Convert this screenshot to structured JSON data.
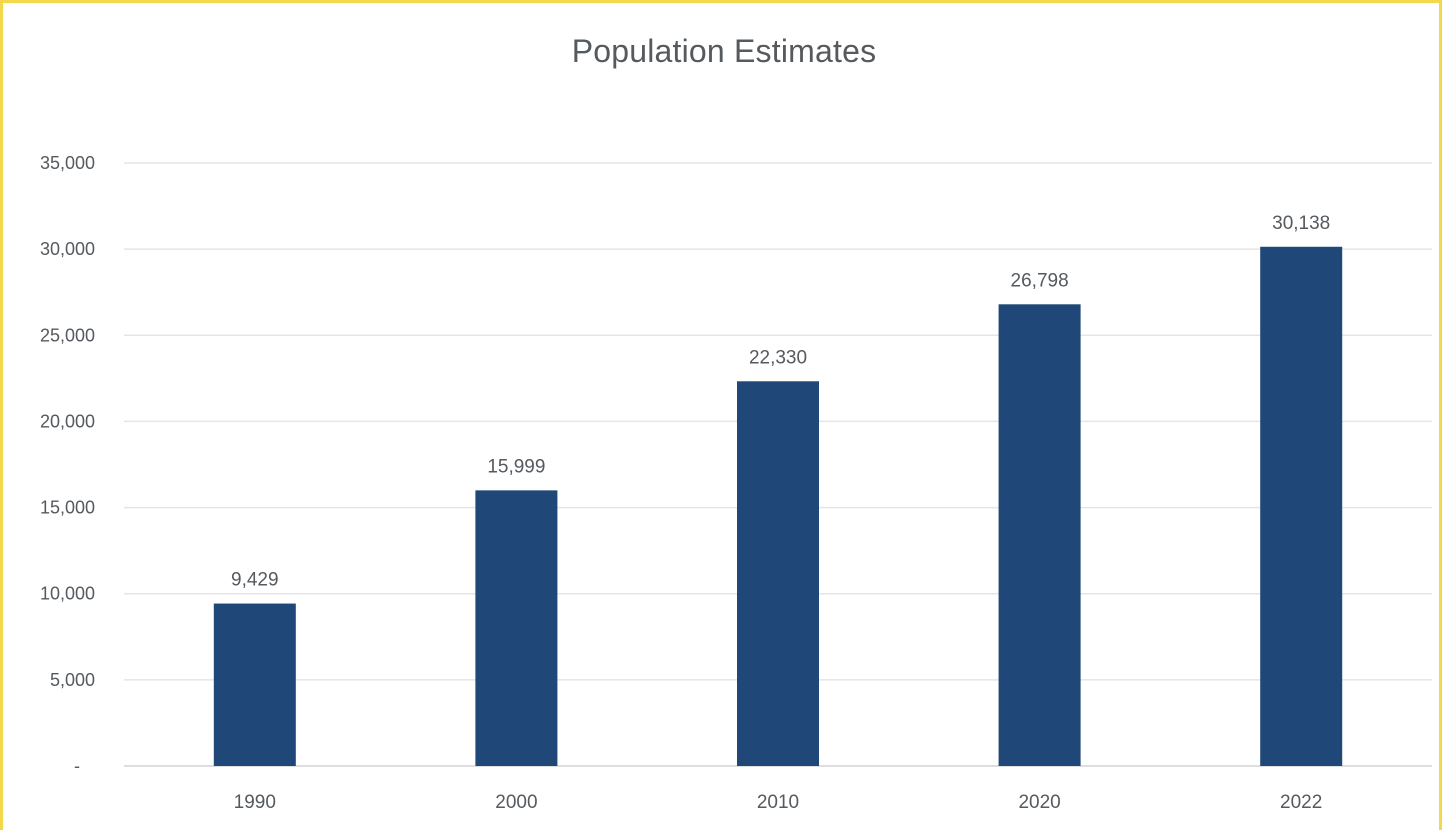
{
  "chart_data": {
    "type": "bar",
    "title": "Population Estimates",
    "xlabel": "",
    "ylabel": "",
    "categories": [
      "1990",
      "2000",
      "2010",
      "2020",
      "2022"
    ],
    "values": [
      9429,
      15999,
      22330,
      26798,
      30138
    ],
    "data_labels": [
      "9,429",
      "15,999",
      "22,330",
      "26,798",
      "30,138"
    ],
    "ylim": [
      0,
      35000
    ],
    "yticks": [
      0,
      5000,
      10000,
      15000,
      20000,
      25000,
      30000,
      35000
    ],
    "ytick_labels": [
      "-",
      "5,000",
      "10,000",
      "15,000",
      "20,000",
      "25,000",
      "30,000",
      "35,000"
    ],
    "grid": true,
    "legend": "none",
    "bar_color": "#1f4777",
    "frame_color": "#f2d84a"
  }
}
